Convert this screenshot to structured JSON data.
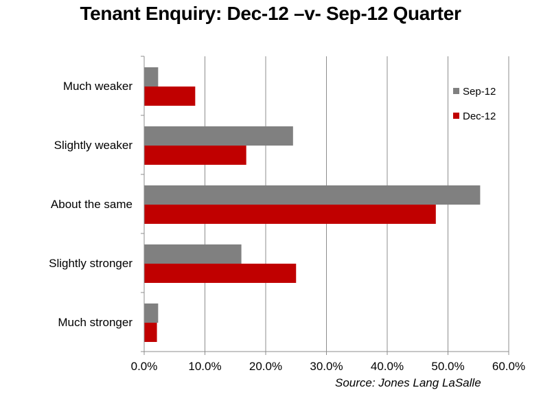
{
  "chart_data": {
    "type": "bar",
    "orientation": "horizontal",
    "title": "Tenant Enquiry: Dec-12 –v- Sep-12 Quarter",
    "categories": [
      "Much weaker",
      "Slightly weaker",
      "About the same",
      "Slightly stronger",
      "Much stronger"
    ],
    "series": [
      {
        "name": "Sep-12",
        "color": "#808080",
        "values": [
          2.3,
          24.5,
          55.3,
          16.0,
          2.3
        ]
      },
      {
        "name": "Dec-12",
        "color": "#c00000",
        "values": [
          8.4,
          16.8,
          48.0,
          25.0,
          2.1
        ]
      }
    ],
    "xticks": [
      "0.0%",
      "10.0%",
      "20.0%",
      "30.0%",
      "40.0%",
      "50.0%",
      "60.0%"
    ],
    "xlim": [
      0,
      60
    ],
    "grid": true,
    "legend_position": "top-right",
    "source": "Source: Jones Lang LaSalle"
  }
}
